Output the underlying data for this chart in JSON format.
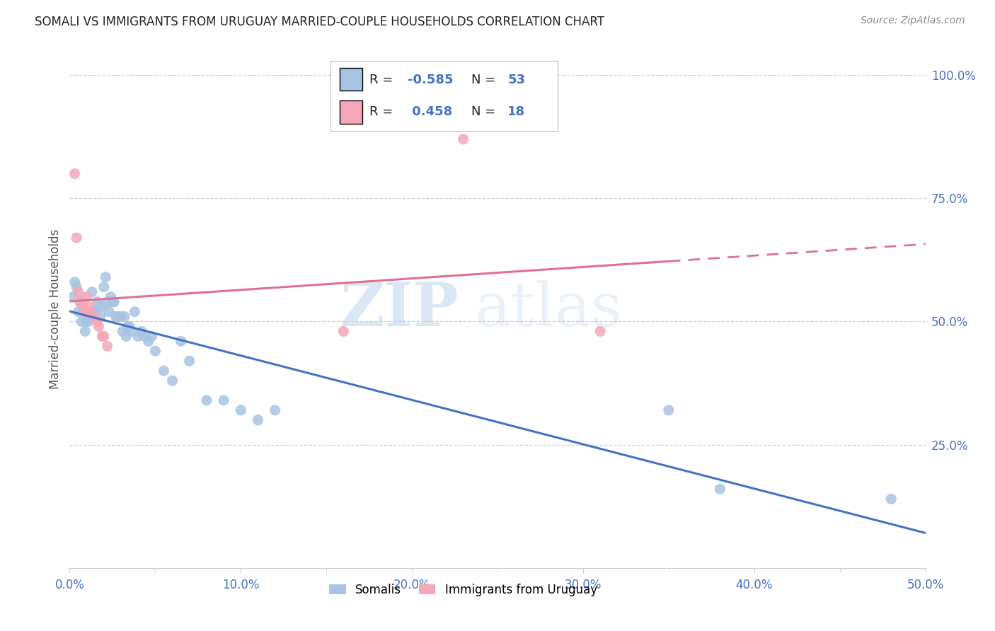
{
  "title": "SOMALI VS IMMIGRANTS FROM URUGUAY MARRIED-COUPLE HOUSEHOLDS CORRELATION CHART",
  "source": "Source: ZipAtlas.com",
  "ylabel": "Married-couple Households",
  "ylabel_right_ticks": [
    "100.0%",
    "75.0%",
    "50.0%",
    "25.0%"
  ],
  "ylabel_right_vals": [
    1.0,
    0.75,
    0.5,
    0.25
  ],
  "xlim": [
    0.0,
    0.5
  ],
  "ylim": [
    0.0,
    1.05
  ],
  "somali_color": "#a8c4e2",
  "somali_color_line": "#4472c4",
  "uruguay_color": "#f4a7b9",
  "uruguay_color_line": "#e07090",
  "R_somali": -0.585,
  "N_somali": 53,
  "R_uruguay": 0.458,
  "N_uruguay": 18,
  "legend_label_somali": "Somalis",
  "legend_label_uruguay": "Immigrants from Uruguay",
  "somali_x": [
    0.002,
    0.003,
    0.004,
    0.005,
    0.006,
    0.007,
    0.008,
    0.009,
    0.01,
    0.011,
    0.012,
    0.013,
    0.014,
    0.015,
    0.016,
    0.017,
    0.018,
    0.019,
    0.02,
    0.021,
    0.022,
    0.023,
    0.024,
    0.025,
    0.026,
    0.027,
    0.028,
    0.03,
    0.031,
    0.032,
    0.033,
    0.034,
    0.035,
    0.036,
    0.038,
    0.04,
    0.042,
    0.044,
    0.046,
    0.048,
    0.05,
    0.055,
    0.06,
    0.065,
    0.07,
    0.08,
    0.09,
    0.1,
    0.11,
    0.12,
    0.35,
    0.38,
    0.48
  ],
  "somali_y": [
    0.55,
    0.58,
    0.57,
    0.52,
    0.54,
    0.5,
    0.52,
    0.48,
    0.5,
    0.5,
    0.51,
    0.56,
    0.52,
    0.52,
    0.54,
    0.53,
    0.51,
    0.53,
    0.57,
    0.59,
    0.54,
    0.52,
    0.55,
    0.54,
    0.54,
    0.51,
    0.51,
    0.51,
    0.48,
    0.51,
    0.47,
    0.49,
    0.49,
    0.48,
    0.52,
    0.47,
    0.48,
    0.47,
    0.46,
    0.47,
    0.44,
    0.4,
    0.38,
    0.46,
    0.42,
    0.34,
    0.34,
    0.32,
    0.3,
    0.32,
    0.32,
    0.16,
    0.14
  ],
  "uruguay_x": [
    0.003,
    0.004,
    0.005,
    0.006,
    0.008,
    0.009,
    0.01,
    0.011,
    0.012,
    0.014,
    0.016,
    0.017,
    0.019,
    0.02,
    0.022,
    0.16,
    0.23,
    0.31
  ],
  "uruguay_y": [
    0.8,
    0.67,
    0.56,
    0.54,
    0.53,
    0.52,
    0.55,
    0.53,
    0.52,
    0.51,
    0.5,
    0.49,
    0.47,
    0.47,
    0.45,
    0.48,
    0.87,
    0.48
  ],
  "watermark_zip": "ZIP",
  "watermark_atlas": "atlas",
  "background_color": "#ffffff",
  "grid_color": "#d0d0d0",
  "title_color": "#222222",
  "source_color": "#888888",
  "tick_color": "#4472c4",
  "ylabel_color": "#555555"
}
